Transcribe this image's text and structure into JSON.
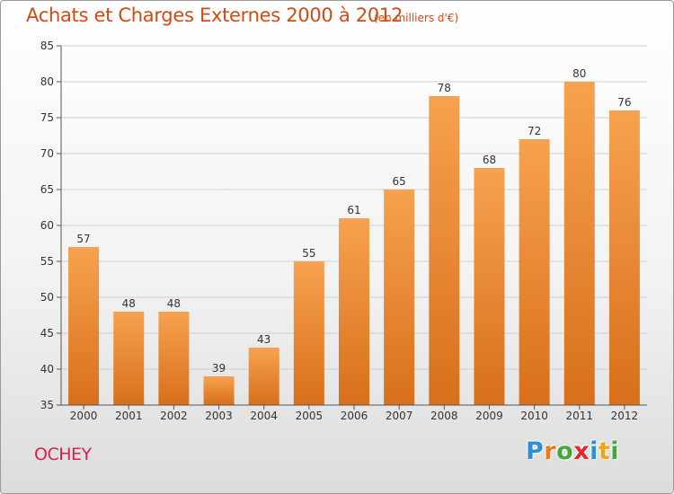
{
  "header": {
    "title": "Achats et Charges Externes 2000 à 2012",
    "subtitle": "(en milliers d'€)"
  },
  "footer": {
    "commune": "OCHEY",
    "logo_letters": [
      {
        "char": "P",
        "color": "#2f8fd3"
      },
      {
        "char": "r",
        "color": "#f07a1a"
      },
      {
        "char": "o",
        "color": "#47a53a"
      },
      {
        "char": "x",
        "color": "#e3282c"
      },
      {
        "char": "i",
        "color": "#2f8fd3"
      },
      {
        "char": "t",
        "color": "#f0a41a"
      },
      {
        "char": "i",
        "color": "#47a53a"
      }
    ]
  },
  "chart_data": {
    "type": "bar",
    "categories": [
      "2000",
      "2001",
      "2002",
      "2003",
      "2004",
      "2005",
      "2006",
      "2007",
      "2008",
      "2009",
      "2010",
      "2011",
      "2012"
    ],
    "values": [
      57,
      48,
      48,
      39,
      43,
      55,
      61,
      65,
      78,
      68,
      72,
      80,
      76
    ],
    "data_labels": [
      "57",
      "48",
      "48",
      "39",
      "43",
      "55",
      "61",
      "65",
      "78",
      "68",
      "72",
      "80",
      "76"
    ],
    "yticks": [
      "35",
      "40",
      "45",
      "50",
      "55",
      "60",
      "65",
      "70",
      "75",
      "80",
      "85"
    ],
    "ylim": [
      35,
      85
    ],
    "grid": true,
    "bar_color_top": "#f7a24f",
    "bar_color_bottom": "#d86f1a",
    "grid_color": "#d0d0d0",
    "axis_color": "#555555"
  }
}
